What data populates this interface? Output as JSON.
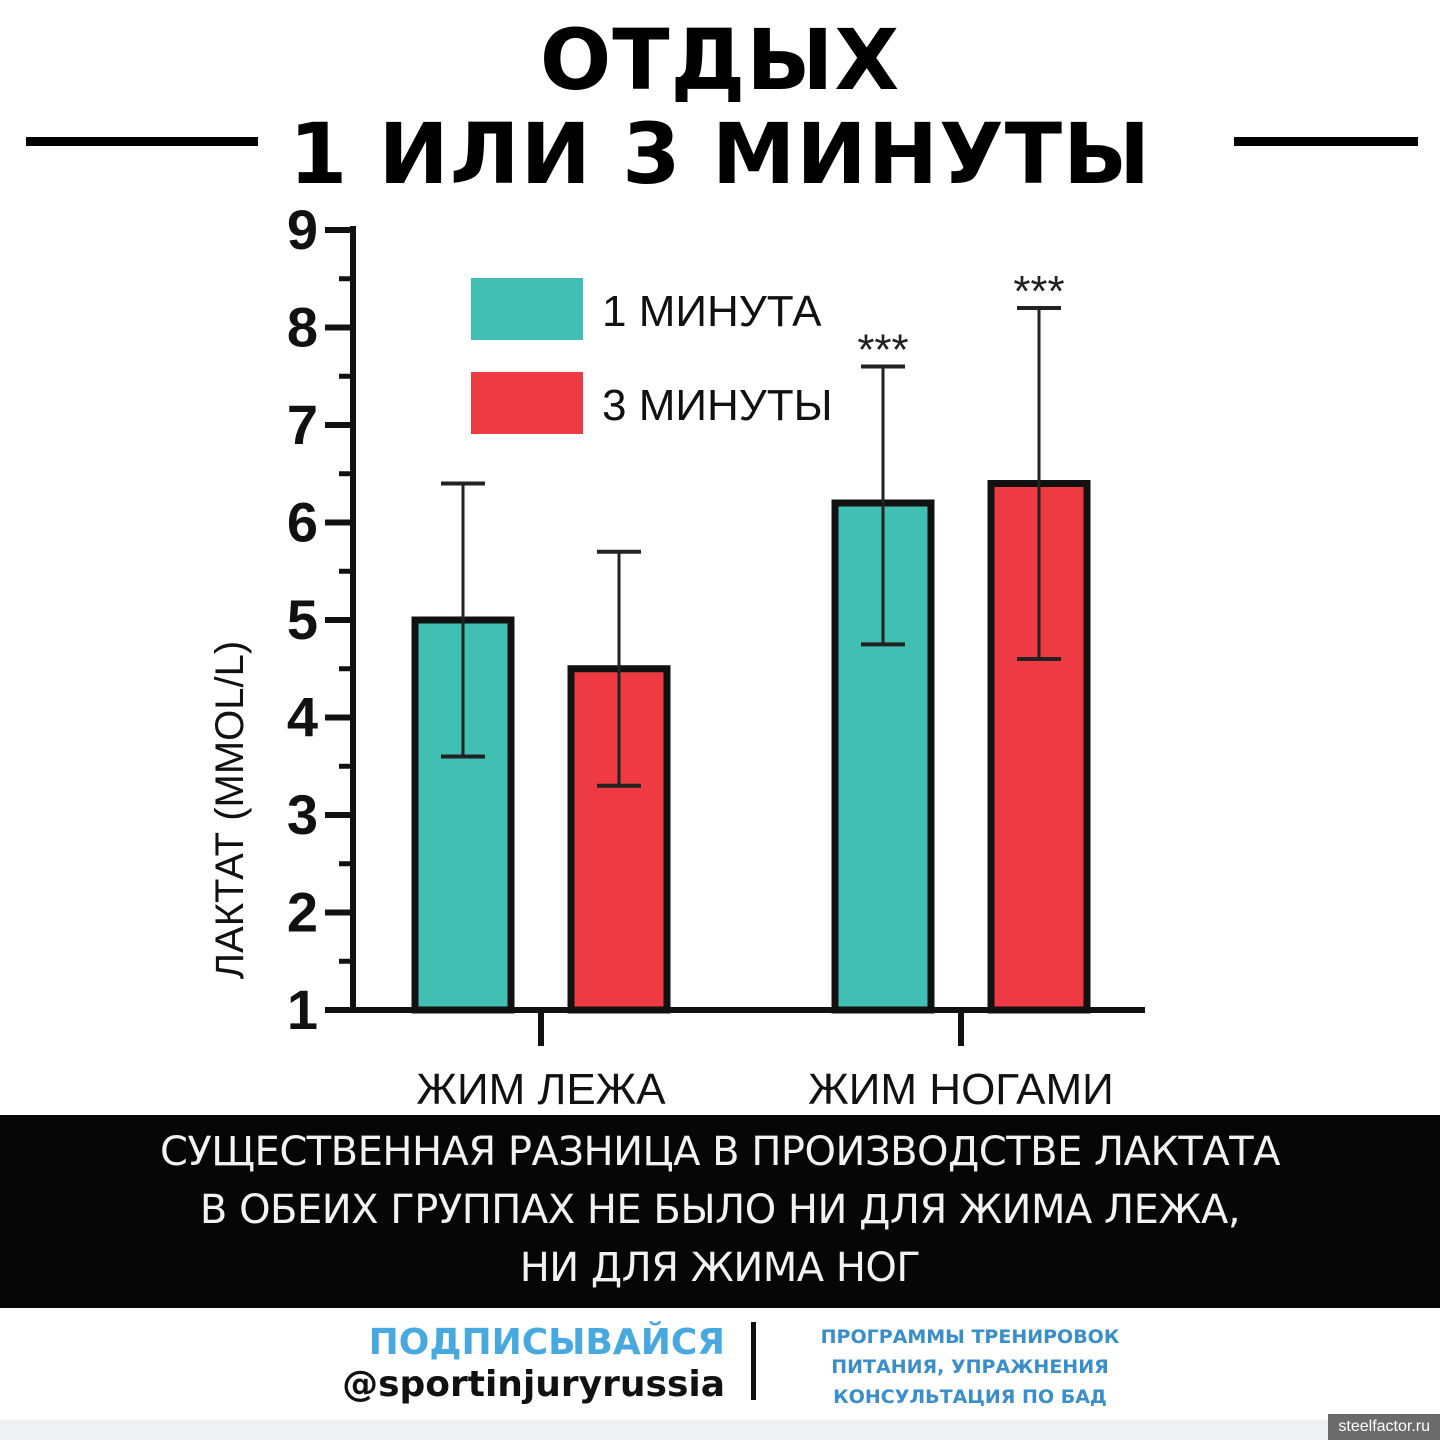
{
  "header": {
    "title_line1": "ОТДЫХ",
    "title_line2": "1 ИЛИ 3 МИНУТЫ"
  },
  "chart_data": {
    "type": "bar",
    "categories": [
      "ЖИМ ЛЕЖА",
      "ЖИМ НОГАМИ"
    ],
    "series": [
      {
        "name": "1 МИНУТА",
        "color": "#41bfb3",
        "values": [
          5.0,
          6.2
        ],
        "err_low": [
          3.6,
          4.75
        ],
        "err_high": [
          6.4,
          7.6
        ]
      },
      {
        "name": "3 МИНУТЫ",
        "color": "#ee3a42",
        "values": [
          4.5,
          6.4
        ],
        "err_low": [
          3.3,
          4.6
        ],
        "err_high": [
          5.7,
          8.2
        ]
      }
    ],
    "annotations": [
      {
        "series": 0,
        "category": 1,
        "text": "***"
      },
      {
        "series": 1,
        "category": 1,
        "text": "***"
      }
    ],
    "ylabel": "ЛАКТАТ (MMOL/L)",
    "xlabel": "",
    "ylim": [
      1,
      9
    ],
    "yticks": [
      "1",
      "2",
      "3",
      "4",
      "5",
      "6",
      "7",
      "8",
      "9"
    ],
    "legend_position": "top-left",
    "grid": false
  },
  "banner": {
    "line1": "СУЩЕСТВЕННАЯ РАЗНИЦА В ПРОИЗВОДСТВЕ ЛАКТАТА",
    "line2": "В ОБЕИХ ГРУППАХ НЕ БЫЛО НИ ДЛЯ ЖИМА ЛЕЖА,",
    "line3": "НИ ДЛЯ ЖИМА НОГ"
  },
  "footer": {
    "subscribe": "ПОДПИСЫВАЙСЯ",
    "handle": "@sportinjuryrussia",
    "services_line1": "ПРОГРАММЫ ТРЕНИРОВОК",
    "services_line2": "ПИТАНИЯ, УПРАЖНЕНИЯ",
    "services_line3": "КОНСУЛЬТАЦИЯ ПО БАД"
  },
  "watermark": "steelfactor.ru"
}
